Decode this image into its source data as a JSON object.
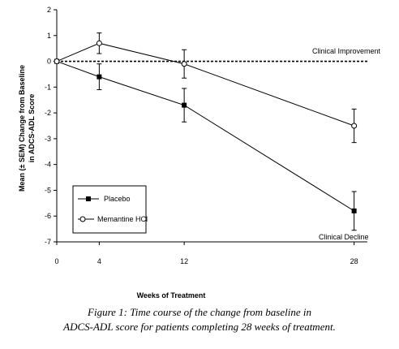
{
  "chart_data": {
    "type": "line",
    "title": "",
    "xlabel": "Weeks of Treatment",
    "ylabel": [
      "Mean (± SEM) Change from Baseline",
      "in ADCS-ADL Score"
    ],
    "x": [
      0,
      4,
      12,
      28
    ],
    "xticks": [
      0,
      4,
      12,
      28
    ],
    "ylim": [
      -7,
      2
    ],
    "yticks": [
      2,
      1,
      0,
      -1,
      -2,
      -3,
      -4,
      -5,
      -6,
      -7
    ],
    "grid": false,
    "legend_position": "bottom-left",
    "series": [
      {
        "name": "Placebo",
        "marker": "filled-square",
        "values": [
          0,
          -0.6,
          -1.7,
          -5.8
        ],
        "sem": [
          0,
          0.5,
          0.65,
          0.75
        ]
      },
      {
        "name": "Memantine HCl",
        "marker": "open-circle",
        "values": [
          0,
          0.7,
          -0.1,
          -2.5
        ],
        "sem": [
          0,
          0.4,
          0.55,
          0.65
        ]
      }
    ],
    "reference_line": {
      "y": 0,
      "style": "dashed"
    },
    "annotations": [
      "Clinical Improvement",
      "Clinical Decline"
    ]
  },
  "caption": {
    "line1": "Figure 1: Time course of the change from baseline in",
    "line2": "ADCS-ADL score for patients completing 28 weeks of treatment."
  }
}
